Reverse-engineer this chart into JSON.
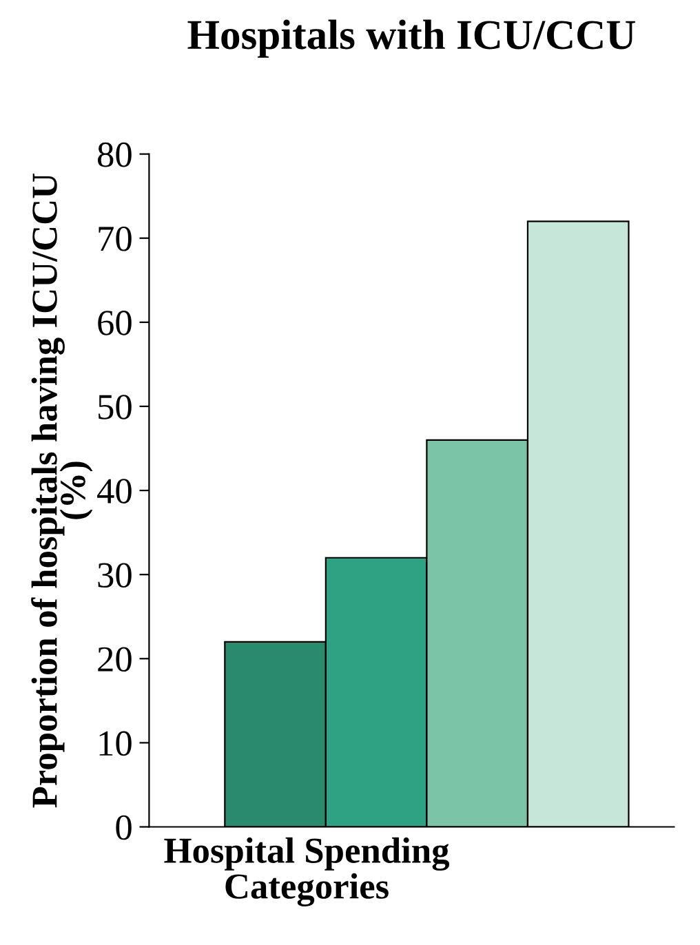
{
  "chart_data": {
    "type": "bar",
    "title": "Hospitals with ICU/CCU",
    "xlabel": "Hospital Spending\nCategories",
    "ylabel": "Proportion of hospitals having ICU/CCU\n(%)",
    "categories": [
      null,
      null,
      null,
      null
    ],
    "values": [
      22,
      32,
      46,
      72
    ],
    "colors": [
      "#2a8a6e",
      "#2ea283",
      "#7cc4a8",
      "#c6e6da"
    ],
    "ylim": [
      0,
      80
    ],
    "yticks": [
      0,
      10,
      20,
      30,
      40,
      50,
      60,
      70,
      80
    ],
    "grid": false,
    "legend": false
  }
}
